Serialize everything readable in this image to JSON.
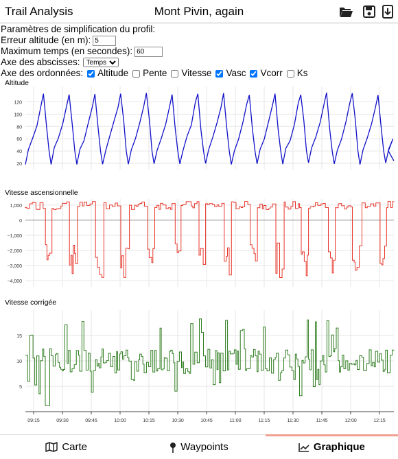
{
  "header": {
    "app_title": "Trail Analysis",
    "doc_title": "Mont Pivin, again"
  },
  "params": {
    "heading": "Paramètres de simplification du profil:",
    "altitude_error_label": "Erreur altitude (en m):",
    "altitude_error_value": "5",
    "max_time_label": "Maximum temps (en secondes):",
    "max_time_value": "60",
    "x_axis_label": "Axe des abscisses:",
    "x_axis_selected": "Temps",
    "y_axis_label": "Axe des ordonnées:",
    "series": [
      {
        "label": "Altitude",
        "checked": true
      },
      {
        "label": "Pente",
        "checked": false
      },
      {
        "label": "Vitesse",
        "checked": false
      },
      {
        "label": "Vasc",
        "checked": true
      },
      {
        "label": "Vcorr",
        "checked": true
      },
      {
        "label": "Ks",
        "checked": false
      }
    ]
  },
  "colors": {
    "altitude": "#1010c8",
    "vasc": "#e8352a",
    "vcorr": "#2e7d1f",
    "grid": "#e6e6e6"
  },
  "chart_data": [
    {
      "type": "line",
      "title": "Altitude",
      "x": [
        "09:15",
        "09:30",
        "09:45",
        "10:00",
        "10:15",
        "10:30",
        "10:45",
        "11:00",
        "11:15",
        "11:30",
        "11:45",
        "12:00",
        "12:15"
      ],
      "series_desc": "14 climb/descent cycles between ~20 m and ~135 m, then a final partial descent",
      "cycles": 14,
      "ymin": 18,
      "ymax": 135,
      "yticks": [
        20,
        40,
        60,
        80,
        100,
        120
      ],
      "ylim": [
        10,
        145
      ]
    },
    {
      "type": "line",
      "title": "Vitesse ascensionnelle",
      "x": [
        "09:15",
        "09:30",
        "09:45",
        "10:00",
        "10:15",
        "10:30",
        "10:45",
        "11:00",
        "11:15",
        "11:30",
        "11:45",
        "12:00",
        "12:15"
      ],
      "series_desc": "Stepped values ~+600 to +1200 while climbing, ~-1800 to -3800 while descending",
      "yticks": [
        1000,
        0,
        -1000,
        -2000,
        -3000,
        -4000
      ],
      "ytick_labels": [
        "1,000",
        "0",
        "−1,000",
        "−2,000",
        "−3,000",
        "−4,000"
      ],
      "ylim": [
        -4400,
        1400
      ]
    },
    {
      "type": "line",
      "title": "Vitesse corrigée",
      "x": [
        "09:15",
        "09:30",
        "09:45",
        "10:00",
        "10:15",
        "10:30",
        "10:45",
        "11:00",
        "11:15",
        "11:30",
        "11:45",
        "12:00",
        "12:15"
      ],
      "series_desc": "Noisy values mostly 7–13, peaks ~18, dips ~1",
      "yticks": [
        5,
        10,
        15
      ],
      "ylim": [
        0,
        20
      ]
    }
  ],
  "tabs": [
    {
      "label": "Carte",
      "icon": "map-icon"
    },
    {
      "label": "Waypoints",
      "icon": "pin-icon"
    },
    {
      "label": "Graphique",
      "icon": "chart-icon"
    }
  ]
}
